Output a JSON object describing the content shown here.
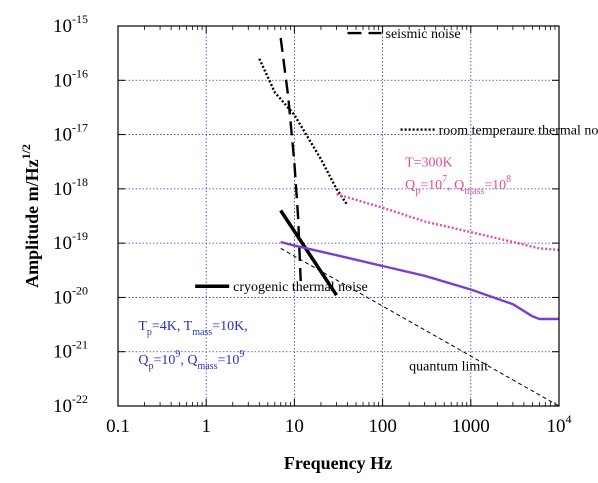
{
  "chart_data": {
    "type": "line",
    "xlabel": "Frequency Hz",
    "ylabel": "Amplitude m/Hz",
    "ylabel_sup": "1/2",
    "xscale": "log",
    "yscale": "log",
    "xlim": [
      0.1,
      10000
    ],
    "ylim": [
      1e-22,
      1e-15
    ],
    "grid": true,
    "x_tick_labels": [
      {
        "v": 0.1,
        "base": "0.1",
        "sup": ""
      },
      {
        "v": 1,
        "base": "1",
        "sup": ""
      },
      {
        "v": 10,
        "base": "10",
        "sup": ""
      },
      {
        "v": 100,
        "base": "100",
        "sup": ""
      },
      {
        "v": 1000,
        "base": "1000",
        "sup": ""
      },
      {
        "v": 10000,
        "base": "10",
        "sup": "4"
      }
    ],
    "y_tick_labels": [
      {
        "v": 1e-15,
        "base": "10",
        "sup": "-15"
      },
      {
        "v": 1e-16,
        "base": "10",
        "sup": "-16"
      },
      {
        "v": 1e-17,
        "base": "10",
        "sup": "-17"
      },
      {
        "v": 1e-18,
        "base": "10",
        "sup": "-18"
      },
      {
        "v": 1e-19,
        "base": "10",
        "sup": "-19"
      },
      {
        "v": 1e-20,
        "base": "10",
        "sup": "-20"
      },
      {
        "v": 1e-21,
        "base": "10",
        "sup": "-21"
      },
      {
        "v": 1e-22,
        "base": "10",
        "sup": "-22"
      }
    ],
    "series": [
      {
        "name": "seismic noise",
        "style": "dashed",
        "color": "#000000",
        "points": [
          [
            7.0,
            6e-16
          ],
          [
            8.5,
            5e-17
          ],
          [
            10.0,
            3e-18
          ],
          [
            11.0,
            3e-19
          ],
          [
            11.8,
            2e-20
          ]
        ]
      },
      {
        "name": "room temperaure thermal noise",
        "style": "dotted",
        "color": "#000000",
        "points": [
          [
            4.0,
            2.5e-16
          ],
          [
            6.0,
            6e-17
          ],
          [
            10.0,
            2.3e-17
          ],
          [
            20.0,
            3.5e-18
          ],
          [
            30.0,
            1e-18
          ],
          [
            40.0,
            5e-19
          ]
        ]
      },
      {
        "name": "room temperature thermal noise (T=300K)",
        "style": "dotted",
        "color": "#e0509e",
        "points": [
          [
            30.0,
            8e-19
          ],
          [
            100.0,
            4.5e-19
          ],
          [
            300.0,
            2.5e-19
          ],
          [
            1000.0,
            1.6e-19
          ],
          [
            3000.0,
            1.05e-19
          ],
          [
            6000.0,
            8e-20
          ],
          [
            10000.0,
            7.5e-20
          ]
        ]
      },
      {
        "name": "cryogenic thermal noise",
        "style": "solid-thick",
        "color": "#000000",
        "points": [
          [
            7.0,
            4e-19
          ],
          [
            30.0,
            1.1e-20
          ]
        ]
      },
      {
        "name": "cryogenic thermal noise (T=4K)",
        "style": "solid",
        "color": "#7b3fd0",
        "points": [
          [
            7.0,
            1.05e-19
          ],
          [
            10.0,
            9e-20
          ],
          [
            30.0,
            6e-20
          ],
          [
            100.0,
            3.8e-20
          ],
          [
            300.0,
            2.5e-20
          ],
          [
            1000.0,
            1.4e-20
          ],
          [
            3000.0,
            7.5e-21
          ],
          [
            5000.0,
            4.5e-21
          ],
          [
            6000.0,
            4e-21
          ],
          [
            10000.0,
            4e-21
          ]
        ]
      },
      {
        "name": "quantum limit",
        "style": "dashed-thin",
        "color": "#000000",
        "points": [
          [
            7.0,
            8e-20
          ],
          [
            10000.0,
            1e-22
          ]
        ]
      }
    ],
    "annotations": [
      {
        "id": "seismic",
        "text": "seismic noise",
        "color": "#000000",
        "x": 40.0,
        "y": 6e-16
      },
      {
        "id": "room",
        "text": "room temperaure thermal noise",
        "color": "#000000",
        "x": 160.0,
        "y": 1e-17
      },
      {
        "id": "cryo",
        "text": "cryogenic thermal noise",
        "color": "#000000",
        "x": 0.75,
        "y": 1.3e-20
      },
      {
        "id": "quantum",
        "text": "quantum limit",
        "color": "#000000",
        "x": 200.0,
        "y": 4.5e-22
      }
    ],
    "rich_annotations": [
      {
        "id": "pink-T",
        "color": "#e0509e",
        "x": 180.0,
        "y": 2.6e-18,
        "parts": [
          {
            "t": "T=300K"
          }
        ]
      },
      {
        "id": "pink-Q",
        "color": "#e0509e",
        "x": 180.0,
        "y": 1e-18,
        "parts": [
          {
            "t": "Q"
          },
          {
            "t": "p",
            "s": "sub"
          },
          {
            "t": "=10"
          },
          {
            "t": "7",
            "s": "sup"
          },
          {
            "t": ", Q"
          },
          {
            "t": "mass",
            "s": "sub"
          },
          {
            "t": "=10"
          },
          {
            "t": "8",
            "s": "sup"
          }
        ]
      },
      {
        "id": "blue-T",
        "color": "#2b34b5",
        "x": 0.17,
        "y": 2.5e-21,
        "parts": [
          {
            "t": "T"
          },
          {
            "t": "p",
            "s": "sub"
          },
          {
            "t": "=4K, T"
          },
          {
            "t": "mass",
            "s": "sub"
          },
          {
            "t": "=10K,"
          }
        ]
      },
      {
        "id": "blue-Q",
        "color": "#2b34b5",
        "x": 0.17,
        "y": 6e-22,
        "parts": [
          {
            "t": "Q"
          },
          {
            "t": "p",
            "s": "sub"
          },
          {
            "t": "=10"
          },
          {
            "t": "9",
            "s": "sup"
          },
          {
            "t": ", Q"
          },
          {
            "t": "mass",
            "s": "sub"
          },
          {
            "t": "=10"
          },
          {
            "t": "9",
            "s": "sup"
          }
        ]
      }
    ]
  },
  "colors": {
    "grid": "#3333cc",
    "axis": "#000000"
  }
}
